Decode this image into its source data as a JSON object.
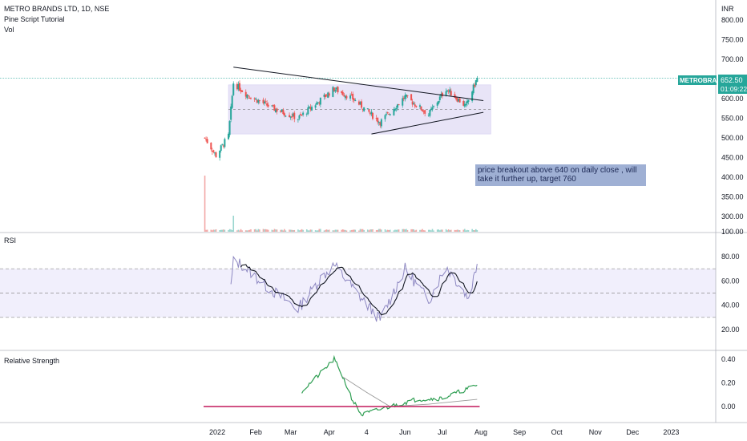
{
  "header": {
    "title": "METRO BRANDS LTD, 1D, NSE",
    "indicator_1": "Pine Script Tutorial",
    "indicator_2": "Vol"
  },
  "price_panel": {
    "currency": "INR",
    "y_ticks": [
      "800.00",
      "750.00",
      "700.00",
      "650.00",
      "600.00",
      "550.00",
      "500.00",
      "450.00",
      "400.00",
      "350.00",
      "300.00",
      "100.00"
    ],
    "ticker_badge": "METROBRAND",
    "last_price": "652.50",
    "countdown": "01:09:22",
    "annotation": "price breakout above 640 on daily close , will take it further up, target 760"
  },
  "rsi_panel": {
    "title": "RSI",
    "y_ticks": [
      "80.00",
      "60.00",
      "40.00",
      "20.00"
    ],
    "bands": {
      "upper": 70,
      "middle": 50,
      "lower": 30
    }
  },
  "rs_panel": {
    "title": "Relative Strength",
    "y_ticks": [
      "0.40",
      "0.20",
      "0.00"
    ]
  },
  "x_axis": {
    "labels": [
      "2022",
      "Feb",
      "Mar",
      "Apr",
      "4",
      "Jun",
      "Jul",
      "Aug",
      "Sep",
      "Oct",
      "Nov",
      "Dec",
      "2023"
    ]
  },
  "colors": {
    "up": "#26a69a",
    "down": "#ef5350",
    "range_box": "#e8e4f7",
    "rsi_band": "#f1effc",
    "rsi_line": "#8e88c2",
    "rsi_ma": "#131722",
    "rs_line": "#2e9e52",
    "rs_zero": "#c2185b",
    "badge": "#26a69a"
  },
  "chart_data": [
    {
      "type": "candlestick",
      "title": "METRO BRANDS LTD, 1D, NSE",
      "ylim": [
        280,
        820
      ],
      "approx_close_path": [
        {
          "x": "2021-12-22",
          "y": 500
        },
        {
          "x": "2021-12-31",
          "y": 455
        },
        {
          "x": "2022-01-10",
          "y": 505
        },
        {
          "x": "2022-01-14",
          "y": 640
        },
        {
          "x": "2022-01-25",
          "y": 610
        },
        {
          "x": "2022-02-15",
          "y": 575
        },
        {
          "x": "2022-03-07",
          "y": 550
        },
        {
          "x": "2022-04-05",
          "y": 625
        },
        {
          "x": "2022-04-20",
          "y": 600
        },
        {
          "x": "2022-05-12",
          "y": 540
        },
        {
          "x": "2022-06-01",
          "y": 605
        },
        {
          "x": "2022-06-20",
          "y": 560
        },
        {
          "x": "2022-07-04",
          "y": 625
        },
        {
          "x": "2022-07-20",
          "y": 580
        },
        {
          "x": "2022-07-29",
          "y": 652.5
        }
      ],
      "last_price": 652.5,
      "trendlines": [
        {
          "name": "upper",
          "from": {
            "x": "2022-01-14",
            "y": 680
          },
          "to": {
            "x": "2022-08-03",
            "y": 595
          }
        },
        {
          "name": "lower",
          "from": {
            "x": "2022-05-05",
            "y": 510
          },
          "to": {
            "x": "2022-08-03",
            "y": 565
          }
        }
      ],
      "range_box": {
        "y_low": 510,
        "y_high": 635
      },
      "horizontal_line": 652.5
    },
    {
      "type": "line",
      "title": "RSI",
      "ylim": [
        10,
        90
      ],
      "bands": [
        30,
        50,
        70
      ],
      "approx_values": [
        {
          "x": "2022-01-12",
          "y": 55
        },
        {
          "x": "2022-01-14",
          "y": 76
        },
        {
          "x": "2022-01-20",
          "y": 74
        },
        {
          "x": "2022-02-10",
          "y": 55
        },
        {
          "x": "2022-03-07",
          "y": 37
        },
        {
          "x": "2022-03-25",
          "y": 62
        },
        {
          "x": "2022-04-05",
          "y": 73
        },
        {
          "x": "2022-04-25",
          "y": 48
        },
        {
          "x": "2022-05-12",
          "y": 28
        },
        {
          "x": "2022-06-01",
          "y": 70
        },
        {
          "x": "2022-06-20",
          "y": 44
        },
        {
          "x": "2022-07-04",
          "y": 72
        },
        {
          "x": "2022-07-22",
          "y": 46
        },
        {
          "x": "2022-07-29",
          "y": 74
        }
      ]
    },
    {
      "type": "line",
      "title": "Relative Strength",
      "ylim": [
        -0.12,
        0.45
      ],
      "approx_values": [
        {
          "x": "2022-03-10",
          "y": 0.13
        },
        {
          "x": "2022-03-25",
          "y": 0.28
        },
        {
          "x": "2022-04-05",
          "y": 0.4
        },
        {
          "x": "2022-04-12",
          "y": 0.25
        },
        {
          "x": "2022-04-20",
          "y": 0.05
        },
        {
          "x": "2022-04-27",
          "y": -0.07
        },
        {
          "x": "2022-05-20",
          "y": 0.0
        },
        {
          "x": "2022-06-10",
          "y": 0.06
        },
        {
          "x": "2022-07-01",
          "y": 0.07
        },
        {
          "x": "2022-07-29",
          "y": 0.18
        }
      ]
    }
  ]
}
